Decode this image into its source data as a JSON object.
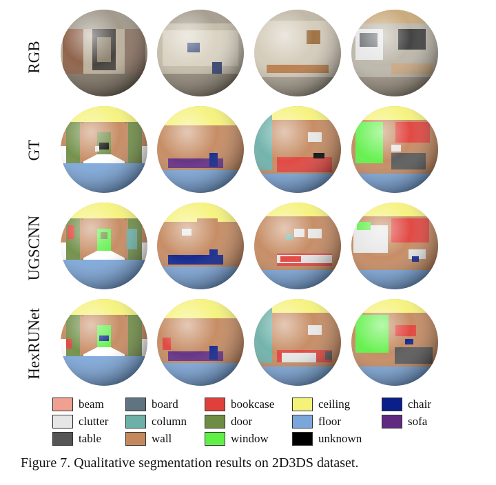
{
  "figure": {
    "rows": [
      {
        "label": "RGB",
        "kind": "rgb"
      },
      {
        "label": "GT",
        "kind": "seg"
      },
      {
        "label": "UGSCNN",
        "kind": "seg"
      },
      {
        "label": "HexRUNet",
        "kind": "seg"
      }
    ],
    "columns": 4,
    "legend": [
      {
        "label": "beam",
        "color": "#f0a090"
      },
      {
        "label": "board",
        "color": "#5f7380"
      },
      {
        "label": "bookcase",
        "color": "#e0403a"
      },
      {
        "label": "ceiling",
        "color": "#f5f27a"
      },
      {
        "label": "chair",
        "color": "#0b1f8a"
      },
      {
        "label": "clutter",
        "color": "#e6e6e6"
      },
      {
        "label": "column",
        "color": "#6cb0a8"
      },
      {
        "label": "door",
        "color": "#6e8c44"
      },
      {
        "label": "floor",
        "color": "#7aa6db"
      },
      {
        "label": "sofa",
        "color": "#5f2a80"
      },
      {
        "label": "table",
        "color": "#555555"
      },
      {
        "label": "wall",
        "color": "#c4885e"
      },
      {
        "label": "window",
        "color": "#5ff047"
      },
      {
        "label": "unknown",
        "color": "#000000"
      }
    ],
    "caption": "Figure 7. Qualitative segmentation results on 2D3DS dataset."
  }
}
